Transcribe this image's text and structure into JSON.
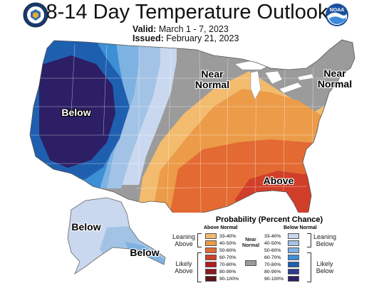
{
  "header": {
    "title": "8-14 Day Temperature Outlook",
    "valid_label": "Valid:",
    "valid_value": "March 1 - 7, 2023",
    "issued_label": "Issued:",
    "issued_value": "February 21, 2023"
  },
  "logos": {
    "left": "doc-seal-icon",
    "right": "noaa-logo-icon",
    "noaa_text": "NOAA"
  },
  "map_labels": {
    "below_west": "Below",
    "near_normal_north": [
      "Near",
      "Normal"
    ],
    "near_normal_northeast": [
      "Near",
      "Normal"
    ],
    "above_southeast": "Above",
    "below_alaska_north": "Below",
    "below_alaska_south": "Below"
  },
  "colors": {
    "above": [
      "#f2bb6e",
      "#ec9b48",
      "#e36a32",
      "#d13f2a",
      "#b01e23",
      "#8c1a1e",
      "#5e1419"
    ],
    "below": [
      "#c9d8ef",
      "#a2c3e6",
      "#7eb2e2",
      "#3d8fd6",
      "#1f5fb0",
      "#2b3a8f",
      "#2c1f66"
    ],
    "near_normal": "#9b9b9b"
  },
  "legend": {
    "title": "Probability (Percent Chance)",
    "above_header": "Above Normal",
    "below_header": "Below Normal",
    "near_label": [
      "Near",
      "Normal"
    ],
    "ranges": [
      "33-40%",
      "40-50%",
      "50-60%",
      "60-70%",
      "70-80%",
      "80-90%",
      "90-100%"
    ],
    "leaning_above": [
      "Leaning",
      "Above"
    ],
    "likely_above": [
      "Likely",
      "Above"
    ],
    "leaning_below": [
      "Leaning",
      "Below"
    ],
    "likely_below": [
      "Likely",
      "Below"
    ]
  }
}
